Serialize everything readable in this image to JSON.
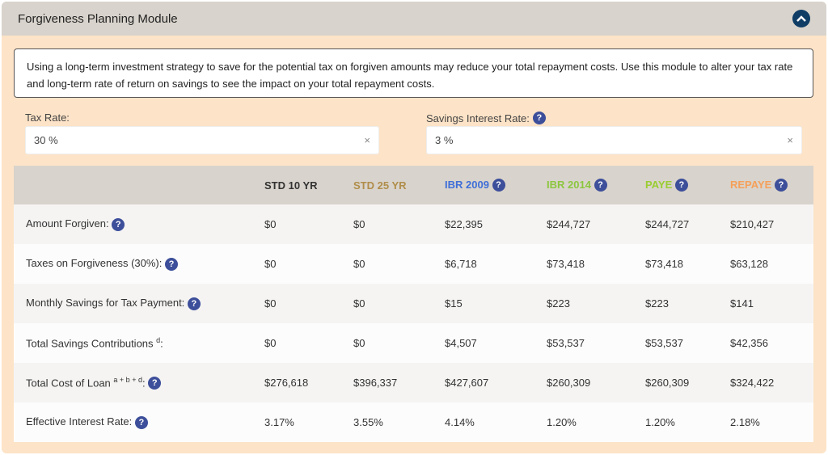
{
  "title": "Forgiveness Planning Module",
  "notice": "Using a long-term investment strategy to save for the potential tax on forgiven amounts may reduce your total repayment costs. Use this module to alter your tax rate and long-term rate of return on savings to see the impact on your total repayment costs.",
  "tax_rate": {
    "label": "Tax Rate:",
    "value": "30 %"
  },
  "savings_rate": {
    "label": "Savings Interest Rate:",
    "value": "3 %"
  },
  "clear_glyph": "×",
  "help_glyph": "?",
  "columns": [
    {
      "label": "STD 10 YR",
      "color": "#333333",
      "help": false
    },
    {
      "label": "STD 25 YR",
      "color": "#b08d4a",
      "help": false
    },
    {
      "label": "IBR 2009",
      "color": "#3f6fd8",
      "help": true
    },
    {
      "label": "IBR 2014",
      "color": "#8cc63f",
      "help": true
    },
    {
      "label": "PAYE",
      "color": "#9acd32",
      "help": true
    },
    {
      "label": "REPAYE",
      "color": "#f5a05a",
      "help": true
    }
  ],
  "rows": [
    {
      "label": "Amount Forgiven:",
      "sup": "",
      "help": true,
      "values": [
        "$0",
        "$0",
        "$22,395",
        "$244,727",
        "$244,727",
        "$210,427"
      ]
    },
    {
      "label": "Taxes on Forgiveness (30%):",
      "sup": "",
      "help": true,
      "values": [
        "$0",
        "$0",
        "$6,718",
        "$73,418",
        "$73,418",
        "$63,128"
      ]
    },
    {
      "label": "Monthly Savings for Tax Payment:",
      "sup": "",
      "help": true,
      "values": [
        "$0",
        "$0",
        "$15",
        "$223",
        "$223",
        "$141"
      ]
    },
    {
      "label": "Total Savings Contributions",
      "sup": "d",
      "suffix": ":",
      "help": false,
      "values": [
        "$0",
        "$0",
        "$4,507",
        "$53,537",
        "$53,537",
        "$42,356"
      ]
    },
    {
      "label": "Total Cost of Loan",
      "sup": "a + b + d",
      "suffix": ":",
      "help": true,
      "values": [
        "$276,618",
        "$396,337",
        "$427,607",
        "$260,309",
        "$260,309",
        "$324,422"
      ]
    },
    {
      "label": "Effective Interest Rate:",
      "sup": "",
      "help": true,
      "values": [
        "3.17%",
        "3.55%",
        "4.14%",
        "1.20%",
        "1.20%",
        "2.18%"
      ]
    }
  ]
}
